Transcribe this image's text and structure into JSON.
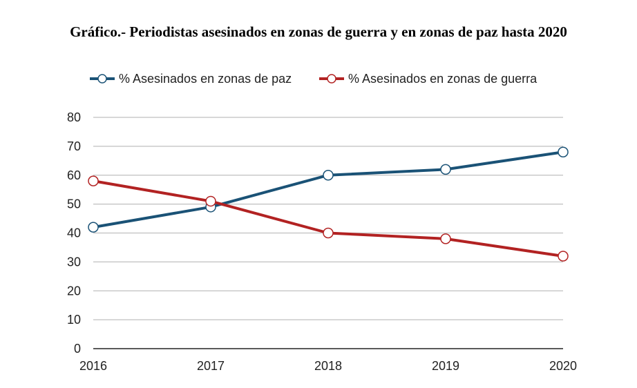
{
  "chart_data": {
    "type": "line",
    "title": "Gráfico.- Periodistas asesinados en zonas de guerra y en zonas de paz hasta 2020",
    "x": [
      "2016",
      "2017",
      "2018",
      "2019",
      "2020"
    ],
    "series": [
      {
        "name": "% Asesinados en zonas de paz",
        "color": "#1a5276",
        "values": [
          42,
          49,
          60,
          62,
          68
        ]
      },
      {
        "name": "% Asesinados en zonas de guerra",
        "color": "#b22222",
        "values": [
          58,
          51,
          40,
          38,
          32
        ]
      }
    ],
    "yticks": [
      "0",
      "10",
      "20",
      "30",
      "40",
      "50",
      "60",
      "70",
      "80"
    ],
    "ylim": [
      0,
      80
    ],
    "grid": true,
    "legend_position": "top"
  }
}
